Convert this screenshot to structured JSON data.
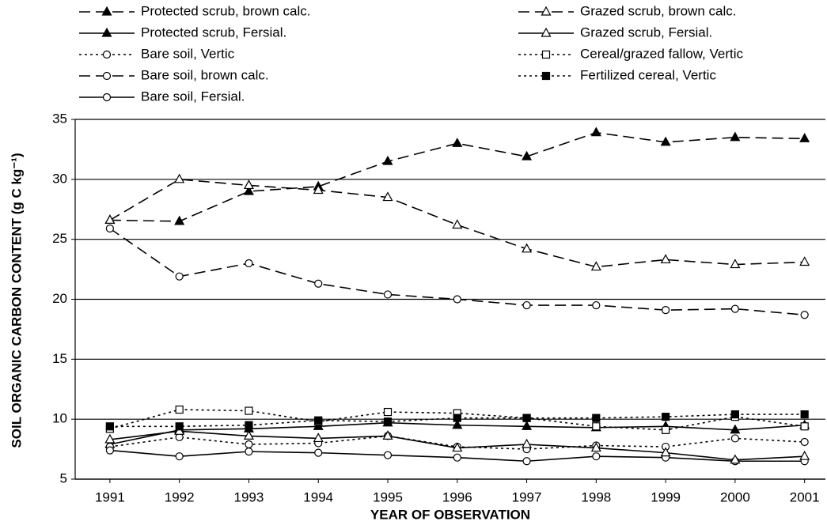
{
  "chart_data": {
    "type": "line",
    "xlabel": "YEAR OF OBSERVATION",
    "ylabel": "SOIL ORGANIC CARBON CONTENT (g C kg⁻¹)",
    "x": [
      1991,
      1992,
      1993,
      1994,
      1995,
      1996,
      1997,
      1998,
      1999,
      2000,
      2001
    ],
    "xlim": [
      1990.5,
      2001.3
    ],
    "xticks": [
      1991,
      1992,
      1993,
      1994,
      1995,
      1996,
      1997,
      1998,
      1999,
      2000,
      2001
    ],
    "ylim": [
      5,
      35
    ],
    "yticks": [
      5,
      10,
      15,
      20,
      25,
      30,
      35
    ],
    "grid": true,
    "series": [
      {
        "name": "Protected scrub, brown calc.",
        "color": "#000000",
        "dash": "dashed",
        "marker": "triangle-filled",
        "values": [
          26.6,
          26.5,
          29.0,
          29.4,
          31.5,
          33.0,
          31.9,
          33.9,
          33.1,
          33.5,
          33.4
        ]
      },
      {
        "name": "Protected scrub, Fersial.",
        "color": "#000000",
        "dash": "solid",
        "marker": "triangle-filled",
        "values": [
          7.9,
          9.1,
          9.2,
          9.4,
          9.7,
          9.5,
          9.4,
          9.3,
          9.4,
          9.1,
          9.5
        ]
      },
      {
        "name": "Bare soil, Vertic",
        "color": "#000000",
        "dash": "dotted",
        "marker": "circle-open",
        "values": [
          7.7,
          8.5,
          7.9,
          8.0,
          8.6,
          7.7,
          7.5,
          7.8,
          7.7,
          8.4,
          8.1
        ]
      },
      {
        "name": "Bare soil, brown calc.",
        "color": "#000000",
        "dash": "dashed",
        "marker": "circle-open",
        "values": [
          25.9,
          21.9,
          23.0,
          21.3,
          20.4,
          20.0,
          19.5,
          19.5,
          19.1,
          19.2,
          18.7
        ]
      },
      {
        "name": "Bare soil, Fersial.",
        "color": "#000000",
        "dash": "solid",
        "marker": "circle-open",
        "values": [
          7.4,
          6.9,
          7.3,
          7.2,
          7.0,
          6.8,
          6.5,
          6.9,
          6.8,
          6.5,
          6.5
        ]
      },
      {
        "name": "Grazed scrub, brown calc.",
        "color": "#000000",
        "dash": "dashed",
        "marker": "triangle-open",
        "values": [
          26.6,
          30.0,
          29.5,
          29.1,
          28.5,
          26.2,
          24.2,
          22.7,
          23.3,
          22.9,
          23.1
        ]
      },
      {
        "name": "Grazed scrub, Fersial.",
        "color": "#000000",
        "dash": "solid",
        "marker": "triangle-open",
        "values": [
          8.3,
          9.0,
          8.6,
          8.4,
          8.6,
          7.6,
          7.9,
          7.6,
          7.2,
          6.6,
          6.9
        ]
      },
      {
        "name": "Cereal/grazed fallow, Vertic",
        "color": "#000000",
        "dash": "dotted",
        "marker": "square-open",
        "values": [
          9.2,
          10.8,
          10.7,
          9.8,
          10.6,
          10.5,
          10.1,
          9.4,
          9.1,
          10.2,
          9.4
        ]
      },
      {
        "name": "Fertilized cereal, Vertic",
        "color": "#000000",
        "dash": "dotted",
        "marker": "square-filled",
        "values": [
          9.4,
          9.4,
          9.5,
          9.9,
          9.8,
          10.1,
          10.1,
          10.1,
          10.2,
          10.4,
          10.4
        ]
      }
    ]
  }
}
